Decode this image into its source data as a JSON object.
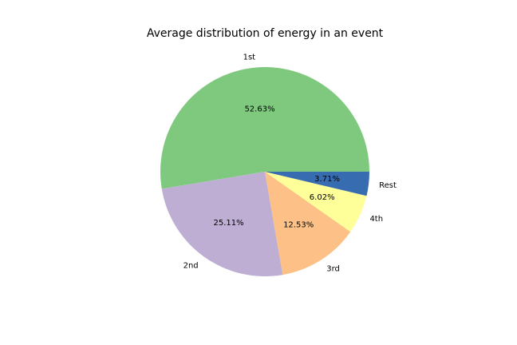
{
  "chart_data": {
    "type": "pie",
    "title": "Average distribution of energy in an event",
    "slices": [
      {
        "label": "1st",
        "value": 52.63,
        "pct_label": "52.63%",
        "color": "#7fc97f"
      },
      {
        "label": "2nd",
        "value": 25.11,
        "pct_label": "25.11%",
        "color": "#beaed4"
      },
      {
        "label": "3rd",
        "value": 12.53,
        "pct_label": "12.53%",
        "color": "#fdc086"
      },
      {
        "label": "4th",
        "value": 6.02,
        "pct_label": "6.02%",
        "color": "#ffff99"
      },
      {
        "label": "Rest",
        "value": 3.71,
        "pct_label": "3.71%",
        "color": "#386cb0"
      }
    ],
    "start_angle_deg": 0,
    "direction": "counterclockwise",
    "legend": "none"
  }
}
